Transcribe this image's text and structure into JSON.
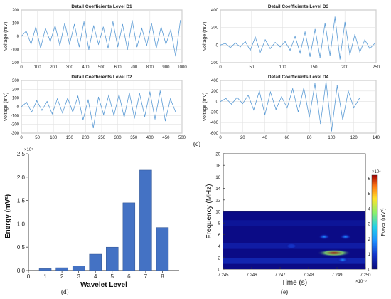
{
  "panel_labels": {
    "c": "(c)",
    "d": "(d)",
    "e": "(e)"
  },
  "chart_data": [
    {
      "id": "D1",
      "type": "line",
      "title": "Detail Coefficients Level D1",
      "ylabel": "Voltage (mV)",
      "xlim": [
        0,
        1000
      ],
      "ylim": [
        -200,
        200
      ],
      "xticks": [
        "0",
        "100",
        "200",
        "300",
        "400",
        "500",
        "600",
        "700",
        "800",
        "900",
        "1000"
      ],
      "yticks": [
        "200",
        "100",
        "0",
        "-100",
        "-200"
      ],
      "color": "#5b9bd5",
      "x": [
        0,
        30,
        60,
        90,
        120,
        150,
        180,
        210,
        240,
        270,
        300,
        330,
        360,
        390,
        420,
        450,
        480,
        510,
        540,
        570,
        600,
        630,
        660,
        690,
        720,
        750,
        780,
        810,
        840,
        870,
        900,
        930,
        960,
        990
      ],
      "y": [
        0,
        40,
        -60,
        70,
        -90,
        60,
        -40,
        80,
        -70,
        100,
        -60,
        90,
        -80,
        110,
        -100,
        80,
        -60,
        70,
        -90,
        110,
        -80,
        90,
        -100,
        120,
        -80,
        60,
        -70,
        100,
        -90,
        70,
        -60,
        50,
        -150,
        120
      ]
    },
    {
      "id": "D3",
      "type": "line",
      "title": "Detail Coefficients Level D3",
      "ylabel": "Voltage (mV)",
      "xlim": [
        0,
        250
      ],
      "ylim": [
        -200,
        400
      ],
      "xticks": [
        "0",
        "50",
        "100",
        "150",
        "200",
        "250"
      ],
      "yticks": [
        "400",
        "200",
        "0",
        "-200"
      ],
      "color": "#5b9bd5",
      "x": [
        0,
        8,
        16,
        24,
        32,
        40,
        48,
        56,
        64,
        72,
        80,
        88,
        96,
        104,
        112,
        120,
        128,
        136,
        144,
        152,
        160,
        168,
        176,
        184,
        192,
        200,
        208,
        216,
        224,
        232,
        240,
        248
      ],
      "y": [
        0,
        20,
        -30,
        25,
        -20,
        40,
        -60,
        90,
        -80,
        60,
        -40,
        30,
        -20,
        40,
        -60,
        100,
        -90,
        150,
        -130,
        180,
        -140,
        250,
        -120,
        320,
        -160,
        260,
        -110,
        120,
        -80,
        60,
        -40,
        20
      ]
    },
    {
      "id": "D2",
      "type": "line",
      "title": "Detail Coefficients Level D2",
      "ylabel": "Voltage (mV)",
      "xlim": [
        0,
        500
      ],
      "ylim": [
        -300,
        300
      ],
      "xticks": [
        "0",
        "50",
        "100",
        "150",
        "200",
        "250",
        "300",
        "350",
        "400",
        "450",
        "500"
      ],
      "yticks": [
        "300",
        "200",
        "100",
        "0",
        "-100",
        "-200",
        "-300"
      ],
      "color": "#5b9bd5",
      "x": [
        0,
        16,
        32,
        48,
        64,
        80,
        96,
        112,
        128,
        144,
        160,
        176,
        192,
        208,
        224,
        240,
        256,
        272,
        288,
        304,
        320,
        336,
        352,
        368,
        384,
        400,
        416,
        432,
        448,
        464,
        480
      ],
      "y": [
        0,
        50,
        -60,
        70,
        -40,
        60,
        -80,
        90,
        -70,
        100,
        -60,
        120,
        -150,
        80,
        -240,
        110,
        -90,
        130,
        -100,
        140,
        -120,
        160,
        -130,
        150,
        -110,
        170,
        -140,
        180,
        -160,
        90,
        -60
      ]
    },
    {
      "id": "D4",
      "type": "line",
      "title": "Detail Coefficients Level D4",
      "ylabel": "Voltage (mV)",
      "xlim": [
        0,
        140
      ],
      "ylim": [
        -600,
        400
      ],
      "xticks": [
        "0",
        "20",
        "40",
        "60",
        "80",
        "100",
        "120",
        "140"
      ],
      "yticks": [
        "400",
        "200",
        "0",
        "-200",
        "-400",
        "-600"
      ],
      "color": "#5b9bd5",
      "x": [
        0,
        5,
        10,
        15,
        20,
        25,
        30,
        35,
        40,
        45,
        50,
        55,
        60,
        65,
        70,
        75,
        80,
        85,
        90,
        95,
        100,
        105,
        110,
        115,
        120,
        125
      ],
      "y": [
        0,
        60,
        -50,
        80,
        -40,
        120,
        -160,
        200,
        -250,
        180,
        -150,
        90,
        -120,
        240,
        -200,
        260,
        -300,
        340,
        -420,
        380,
        -560,
        300,
        -350,
        200,
        -120,
        60
      ]
    },
    {
      "id": "energy",
      "type": "bar",
      "xlabel": "Wavelet Level",
      "ylabel": "Energy (mV²)",
      "sci_factor": "×10⁷",
      "categories": [
        "1",
        "2",
        "3",
        "4",
        "5",
        "6",
        "7",
        "8"
      ],
      "values": [
        0.04,
        0.06,
        0.1,
        0.35,
        0.5,
        1.45,
        2.15,
        0.92
      ],
      "xlim": [
        0,
        9
      ],
      "ylim": [
        0,
        2.5
      ],
      "xticks": [
        "0",
        "1",
        "2",
        "3",
        "4",
        "5",
        "6",
        "7",
        "8"
      ],
      "yticks": [
        "2.5",
        "2.0",
        "1.5",
        "1.0",
        "0.5",
        "0.0"
      ],
      "color": "#4472c4"
    },
    {
      "id": "scalogram",
      "type": "heatmap",
      "xlabel": "Time (s)",
      "ylabel": "Frequency (MHz)",
      "x_sci_factor": "×10⁻⁵",
      "xlim": [
        7.245,
        7.25
      ],
      "ylim": [
        0,
        20
      ],
      "xticks": [
        "7.245",
        "7.246",
        "7.247",
        "7.248",
        "7.249",
        "7.250"
      ],
      "yticks": [
        "20",
        "18",
        "16",
        "14",
        "12",
        "10",
        "8",
        "6",
        "4",
        "2",
        "0"
      ],
      "colorbar": {
        "label": "Power (mV²)",
        "sci_factor": "×10⁴",
        "ticks": [
          "6",
          "5",
          "4",
          "3",
          "2",
          "1",
          "0"
        ],
        "range": [
          0,
          6.2
        ]
      },
      "blobs": [
        {
          "t": 7.2489,
          "f": 2.8,
          "power": 6.0
        },
        {
          "t": 7.24855,
          "f": 5.6,
          "power": 1.8
        },
        {
          "t": 7.2493,
          "f": 5.6,
          "power": 1.5
        },
        {
          "t": 7.2474,
          "f": 4.0,
          "power": 0.8
        },
        {
          "t": 7.2492,
          "f": 1.6,
          "power": 1.1
        }
      ]
    }
  ]
}
